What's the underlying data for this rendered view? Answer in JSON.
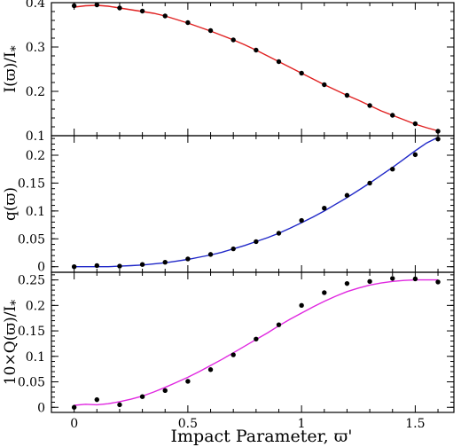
{
  "chart_data": [
    {
      "type": "line",
      "ylabel": "I(ϖ)/I",
      "ylabel_sub": "*",
      "xlim": [
        -0.1,
        1.67
      ],
      "ylim": [
        0.1,
        0.4
      ],
      "yticks": [
        0.1,
        0.2,
        0.3,
        0.4
      ],
      "yticklabels": [
        "0.1",
        "0.2",
        "0.3",
        "0.4"
      ],
      "series": [
        {
          "kind": "curve",
          "color": "#e02020",
          "x": [
            0,
            0.05,
            0.1,
            0.15,
            0.2,
            0.25,
            0.3,
            0.35,
            0.4,
            0.45,
            0.5,
            0.55,
            0.6,
            0.65,
            0.7,
            0.75,
            0.8,
            0.85,
            0.9,
            0.95,
            1.0,
            1.05,
            1.1,
            1.15,
            1.2,
            1.25,
            1.3,
            1.35,
            1.4,
            1.45,
            1.5,
            1.55,
            1.6
          ],
          "y": [
            0.39,
            0.393,
            0.394,
            0.392,
            0.388,
            0.384,
            0.38,
            0.376,
            0.37,
            0.362,
            0.354,
            0.345,
            0.336,
            0.326,
            0.316,
            0.305,
            0.293,
            0.28,
            0.267,
            0.254,
            0.241,
            0.228,
            0.215,
            0.203,
            0.191,
            0.18,
            0.168,
            0.156,
            0.146,
            0.136,
            0.126,
            0.118,
            0.111
          ]
        },
        {
          "kind": "points",
          "color": "#000000",
          "x": [
            0,
            0.1,
            0.2,
            0.3,
            0.4,
            0.5,
            0.6,
            0.7,
            0.8,
            0.9,
            1.0,
            1.1,
            1.2,
            1.3,
            1.4,
            1.5,
            1.6
          ],
          "y": [
            0.393,
            0.395,
            0.388,
            0.381,
            0.37,
            0.355,
            0.337,
            0.316,
            0.293,
            0.267,
            0.241,
            0.215,
            0.191,
            0.168,
            0.146,
            0.127,
            0.11
          ]
        }
      ]
    },
    {
      "type": "line",
      "ylabel": "q(ϖ)",
      "xlim": [
        -0.1,
        1.67
      ],
      "ylim": [
        -0.01,
        0.235
      ],
      "yticks": [
        0,
        0.05,
        0.1,
        0.15,
        0.2
      ],
      "yticklabels": [
        "0",
        "0.05",
        "0.1",
        "0.15",
        "0.2"
      ],
      "series": [
        {
          "kind": "curve",
          "color": "#2028c8",
          "x": [
            0,
            0.05,
            0.1,
            0.15,
            0.2,
            0.25,
            0.3,
            0.35,
            0.4,
            0.45,
            0.5,
            0.55,
            0.6,
            0.65,
            0.7,
            0.75,
            0.8,
            0.85,
            0.9,
            0.95,
            1.0,
            1.05,
            1.1,
            1.15,
            1.2,
            1.25,
            1.3,
            1.35,
            1.4,
            1.45,
            1.5,
            1.55,
            1.6
          ],
          "y": [
            0.0,
            0.0,
            0.0,
            0.0,
            0.001,
            0.002,
            0.003,
            0.005,
            0.007,
            0.01,
            0.013,
            0.017,
            0.021,
            0.026,
            0.032,
            0.038,
            0.045,
            0.052,
            0.06,
            0.069,
            0.079,
            0.089,
            0.1,
            0.112,
            0.124,
            0.137,
            0.15,
            0.164,
            0.178,
            0.193,
            0.208,
            0.222,
            0.232
          ]
        },
        {
          "kind": "points",
          "color": "#000000",
          "x": [
            0,
            0.1,
            0.2,
            0.3,
            0.4,
            0.5,
            0.6,
            0.7,
            0.8,
            0.9,
            1.0,
            1.1,
            1.2,
            1.3,
            1.4,
            1.5,
            1.6
          ],
          "y": [
            0.0,
            0.002,
            0.001,
            0.004,
            0.008,
            0.014,
            0.022,
            0.032,
            0.045,
            0.06,
            0.083,
            0.105,
            0.128,
            0.15,
            0.175,
            0.201,
            0.229
          ]
        }
      ]
    },
    {
      "type": "line",
      "ylabel": "10×Q(ϖ)/I",
      "ylabel_sub": "*",
      "xlabel": "Impact Parameter, ϖ'",
      "xlim": [
        -0.1,
        1.67
      ],
      "ylim": [
        -0.01,
        0.265
      ],
      "xticks": [
        0,
        0.5,
        1,
        1.5
      ],
      "xticklabels": [
        "0",
        "0.5",
        "1",
        "1.5"
      ],
      "yticks": [
        0,
        0.05,
        0.1,
        0.15,
        0.2,
        0.25
      ],
      "yticklabels": [
        "0",
        "0.05",
        "0.1",
        "0.15",
        "0.2",
        "0.25"
      ],
      "series": [
        {
          "kind": "curve",
          "color": "#e028e0",
          "x": [
            0,
            0.05,
            0.1,
            0.15,
            0.2,
            0.25,
            0.3,
            0.35,
            0.4,
            0.45,
            0.5,
            0.55,
            0.6,
            0.65,
            0.7,
            0.75,
            0.8,
            0.85,
            0.9,
            0.95,
            1.0,
            1.05,
            1.1,
            1.15,
            1.2,
            1.25,
            1.3,
            1.35,
            1.4,
            1.45,
            1.5,
            1.55,
            1.6
          ],
          "y": [
            0.004,
            0.006,
            0.005,
            0.007,
            0.011,
            0.016,
            0.022,
            0.03,
            0.039,
            0.049,
            0.059,
            0.07,
            0.082,
            0.094,
            0.107,
            0.12,
            0.133,
            0.146,
            0.16,
            0.173,
            0.185,
            0.197,
            0.208,
            0.218,
            0.227,
            0.234,
            0.24,
            0.244,
            0.247,
            0.249,
            0.25,
            0.25,
            0.25
          ]
        },
        {
          "kind": "points",
          "color": "#000000",
          "x": [
            0,
            0.1,
            0.2,
            0.3,
            0.4,
            0.5,
            0.6,
            0.7,
            0.8,
            0.9,
            1.0,
            1.1,
            1.2,
            1.3,
            1.4,
            1.5,
            1.6
          ],
          "y": [
            0.0,
            0.015,
            0.005,
            0.021,
            0.033,
            0.051,
            0.074,
            0.103,
            0.134,
            0.162,
            0.2,
            0.225,
            0.243,
            0.247,
            0.253,
            0.252,
            0.246
          ]
        }
      ]
    }
  ]
}
